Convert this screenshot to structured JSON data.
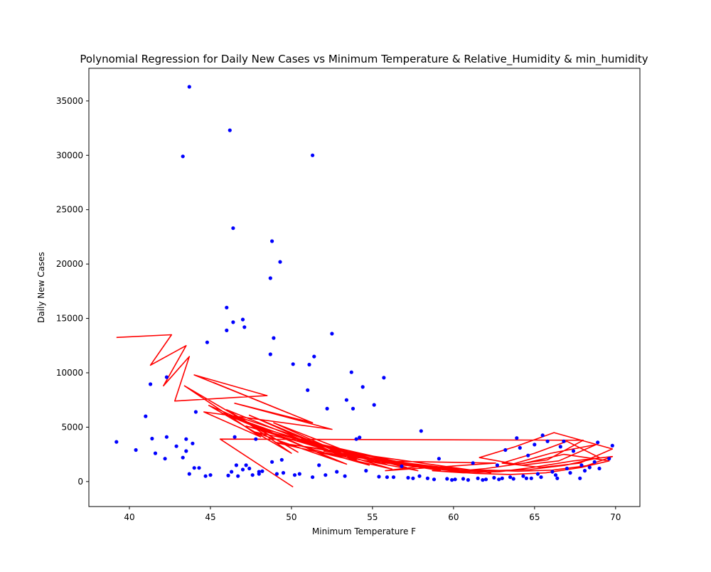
{
  "chart_data": {
    "type": "scatter",
    "title": "Polynomial Regression for Daily New Cases vs Minimum Temperature & Relative_Humidity & min_humidity",
    "xlabel": "Minimum Temperature F",
    "ylabel": "Daily New Cases",
    "xlim": [
      37.5,
      71.5
    ],
    "ylim": [
      -2300,
      38000
    ],
    "xticks": [
      40,
      45,
      50,
      55,
      60,
      65,
      70
    ],
    "yticks": [
      0,
      5000,
      10000,
      15000,
      20000,
      25000,
      30000,
      35000
    ],
    "grid": false,
    "legend": "none",
    "colors": {
      "points": "#0000ff",
      "fit": "#ff0000"
    },
    "series": [
      {
        "kind": "points",
        "x": [
          39.2,
          41.0,
          41.3,
          41.4,
          42.3,
          42.3,
          42.9,
          43.3,
          43.5,
          43.5,
          43.7,
          43.9,
          44.0,
          44.1,
          44.3,
          44.7,
          44.8,
          45.0,
          46.0,
          46.0,
          46.1,
          46.2,
          46.4,
          46.4,
          46.5,
          46.7,
          47.0,
          47.0,
          47.1,
          47.2,
          47.6,
          47.8,
          48.0,
          48.7,
          48.7,
          48.8,
          48.9,
          49.3,
          50.1,
          51.0,
          51.1,
          51.3,
          51.4,
          52.2,
          52.5,
          53.4,
          53.7,
          53.8,
          54.0,
          54.2,
          54.4,
          55.1,
          55.7,
          58.0,
          43.7,
          46.3,
          51.3,
          43.3,
          48.8,
          49.4,
          40.4,
          41.6,
          42.2,
          46.6,
          47.4,
          48.2,
          49.5,
          50.5,
          52.1,
          53.3,
          55.4,
          56.3,
          57.2,
          58.4,
          59.6,
          60.6,
          61.5,
          62.5,
          63.5,
          64.3,
          65.2,
          66.1,
          67.0,
          67.9,
          68.7,
          69.6,
          63.2,
          64.1,
          65.0,
          65.8,
          66.6,
          67.4,
          64.6,
          63.9,
          66.8,
          68.9,
          69.8,
          65.5,
          61.2,
          59.1,
          56.8,
          54.6,
          52.8,
          51.7,
          50.2,
          49.1,
          48.0,
          60.1,
          62.0,
          63.0,
          64.8,
          66.4,
          67.8,
          68.4,
          57.9,
          55.9,
          57.5,
          58.8,
          59.9,
          60.9,
          61.8,
          62.8,
          63.7,
          64.5,
          65.4,
          66.3,
          67.2,
          68.1,
          69.0,
          62.7
        ],
        "y": [
          3650,
          6000,
          8950,
          3950,
          4100,
          9600,
          3250,
          29900,
          2800,
          3900,
          36300,
          3500,
          1250,
          6400,
          1250,
          500,
          12800,
          600,
          16000,
          13900,
          550,
          32300,
          14650,
          23300,
          4100,
          500,
          14900,
          1100,
          14200,
          1500,
          600,
          3900,
          700,
          11700,
          18700,
          22100,
          13200,
          20200,
          10800,
          8400,
          10750,
          30000,
          11500,
          6700,
          13600,
          7500,
          10050,
          6700,
          3900,
          4050,
          8700,
          7050,
          9550,
          4650,
          700,
          900,
          400,
          2200,
          1800,
          2000,
          2900,
          2600,
          2100,
          1500,
          1200,
          950,
          800,
          700,
          600,
          500,
          450,
          400,
          350,
          300,
          250,
          250,
          300,
          350,
          400,
          500,
          700,
          900,
          1200,
          1500,
          1800,
          2100,
          2900,
          3100,
          3400,
          3700,
          3200,
          2800,
          2400,
          4000,
          3700,
          3600,
          3300,
          4250,
          1700,
          2100,
          1400,
          1000,
          900,
          1500,
          600,
          700,
          900,
          200,
          200,
          300,
          300,
          300,
          300,
          1300,
          500,
          400,
          300,
          200,
          150,
          150,
          150,
          200,
          250,
          300,
          400,
          600,
          800,
          1000,
          1200,
          1500
        ]
      },
      {
        "kind": "fit",
        "x": [
          39.2,
          42.6,
          41.3,
          43.5,
          42.1,
          43.7,
          42.8,
          48.5,
          44.0,
          49.8,
          45.2,
          51.3,
          46.5,
          52.5,
          44.6,
          48.1,
          43.4,
          50.4,
          46.0,
          53.2,
          47.4,
          54.0,
          48.9,
          55.1,
          46.8,
          50.0,
          44.9,
          52.8,
          48.2,
          56.0,
          49.7,
          57.1,
          51.0,
          58.4,
          47.6,
          53.4,
          45.7,
          54.8,
          50.5,
          59.2,
          52.0,
          61.0,
          53.6,
          62.3,
          49.0,
          56.2,
          47.2,
          57.8,
          51.8,
          60.4,
          54.7,
          62.6,
          55.8,
          58.0,
          60.1,
          62.2,
          64.0,
          66.1,
          68.2,
          69.8,
          67.4,
          64.9,
          62.8,
          60.6,
          58.7,
          61.4,
          63.5,
          65.7,
          67.9,
          69.6,
          66.8,
          64.4,
          62.0,
          59.8,
          62.5,
          64.7,
          66.9,
          69.0,
          67.0,
          65.0,
          63.0,
          65.4,
          67.8,
          69.8,
          66.2,
          63.8,
          61.6,
          64.2,
          66.5,
          68.8,
          66.0,
          63.4,
          65.8,
          68.0,
          45.6,
          50.1
        ],
        "y": [
          13250,
          13500,
          10700,
          12500,
          8800,
          11500,
          7400,
          7900,
          9800,
          6300,
          9100,
          5400,
          7200,
          4800,
          6400,
          4100,
          8800,
          2700,
          6600,
          2300,
          6100,
          2000,
          5400,
          1800,
          5900,
          2600,
          7000,
          1900,
          4900,
          1500,
          4200,
          1300,
          3700,
          1200,
          4600,
          1600,
          6300,
          1500,
          3300,
          1000,
          2800,
          850,
          2300,
          800,
          3600,
          1150,
          5100,
          1000,
          2700,
          900,
          1900,
          1700,
          1000,
          1400,
          1100,
          1050,
          950,
          1050,
          1450,
          2300,
          1900,
          1300,
          900,
          800,
          1000,
          750,
          650,
          800,
          1300,
          1900,
          2500,
          1700,
          1200,
          900,
          1000,
          1100,
          1500,
          2200,
          3700,
          2600,
          1700,
          1300,
          1700,
          3000,
          4500,
          3200,
          2200,
          1500,
          1900,
          3400,
          2600,
          1500,
          2000,
          3800,
          3900,
          -500
        ]
      }
    ]
  }
}
